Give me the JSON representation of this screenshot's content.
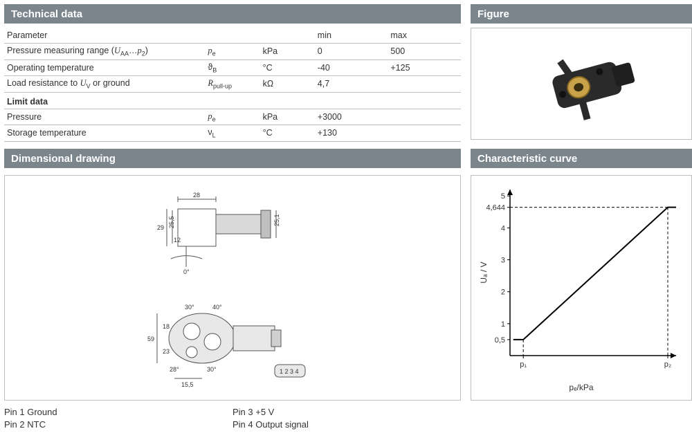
{
  "headers": {
    "technical": "Technical data",
    "figure": "Figure",
    "drawing": "Dimensional drawing",
    "curve": "Characteristic curve"
  },
  "tech_table": {
    "head": {
      "param": "Parameter",
      "min": "min",
      "max": "max"
    },
    "rows": [
      {
        "label": "Pressure measuring range (U_AA…p_2)",
        "label_html": "Pressure measuring range (<i>U</i><sub>AA</sub>…<i>p</i><sub>2</sub>)",
        "sym": "p",
        "sym_sub": "e",
        "unit": "kPa",
        "min": "0",
        "max": "500"
      },
      {
        "label": "Operating temperature",
        "sym_raw": "ϑ",
        "sym_sub": "B",
        "unit": "°C",
        "min": "-40",
        "max": "+125"
      },
      {
        "label": "Load resistance to U_V or ground",
        "label_html": "Load resistance to <i>U</i><sub>V</sub> or ground",
        "sym": "R",
        "sym_sub": "pull-up",
        "unit": "kΩ",
        "min": "4,7",
        "max": ""
      }
    ],
    "limit_title": "Limit data",
    "limit_rows": [
      {
        "label": "Pressure",
        "sym": "p",
        "sym_sub": "e",
        "unit": "kPa",
        "min": "+3000",
        "max": ""
      },
      {
        "label": "Storage temperature",
        "sym_raw": "ν",
        "sym_sub": "L",
        "unit": "°C",
        "min": "+130",
        "max": ""
      }
    ]
  },
  "pins": {
    "left": [
      "Pin 1   Ground",
      "Pin 2   NTC"
    ],
    "right": [
      "Pin 3   +5 V",
      "Pin 4   Output signal"
    ]
  },
  "drawing_dims": {
    "top_view": {
      "w": "28",
      "h_left_outer": "29",
      "h_left_inner": "25,5",
      "h_mid": "12",
      "h_right": "25,1",
      "angle": "0°"
    },
    "bottom_view": {
      "w_total": "59",
      "w_upper": "18",
      "w_lower": "23",
      "bot_w": "15,5",
      "ang_l": "28°",
      "ang_r": "30°",
      "ang_tl": "30°",
      "ang_tr": "40°"
    },
    "connector_labels": "1 2 3 4"
  },
  "chart": {
    "type": "line",
    "x_label": "pₑ/kPa",
    "y_label": "U_A / V",
    "x_ticks": [
      "p₁",
      "p₂"
    ],
    "y_ticks": [
      "0,5",
      "1",
      "2",
      "3",
      "4",
      "4,644",
      "5"
    ],
    "y_tick_vals": [
      0.5,
      1,
      2,
      3,
      4,
      4.644,
      5
    ],
    "ylim": [
      0,
      5.2
    ],
    "xlim": [
      0,
      1
    ],
    "points": [
      {
        "x": 0.02,
        "y": 0.5
      },
      {
        "x": 0.08,
        "y": 0.5
      },
      {
        "x": 0.95,
        "y": 4.644
      },
      {
        "x": 1.0,
        "y": 4.644
      }
    ],
    "line_color": "#000000",
    "line_width": 2,
    "axis_color": "#000000",
    "dash_color": "#000000",
    "background": "#ffffff",
    "font_size": 11
  },
  "colors": {
    "header_bg": "#7b868c",
    "header_fg": "#ffffff",
    "border": "#bdbdbd",
    "sensor_body": "#2a2a2a",
    "sensor_brass": "#c9a24a"
  }
}
